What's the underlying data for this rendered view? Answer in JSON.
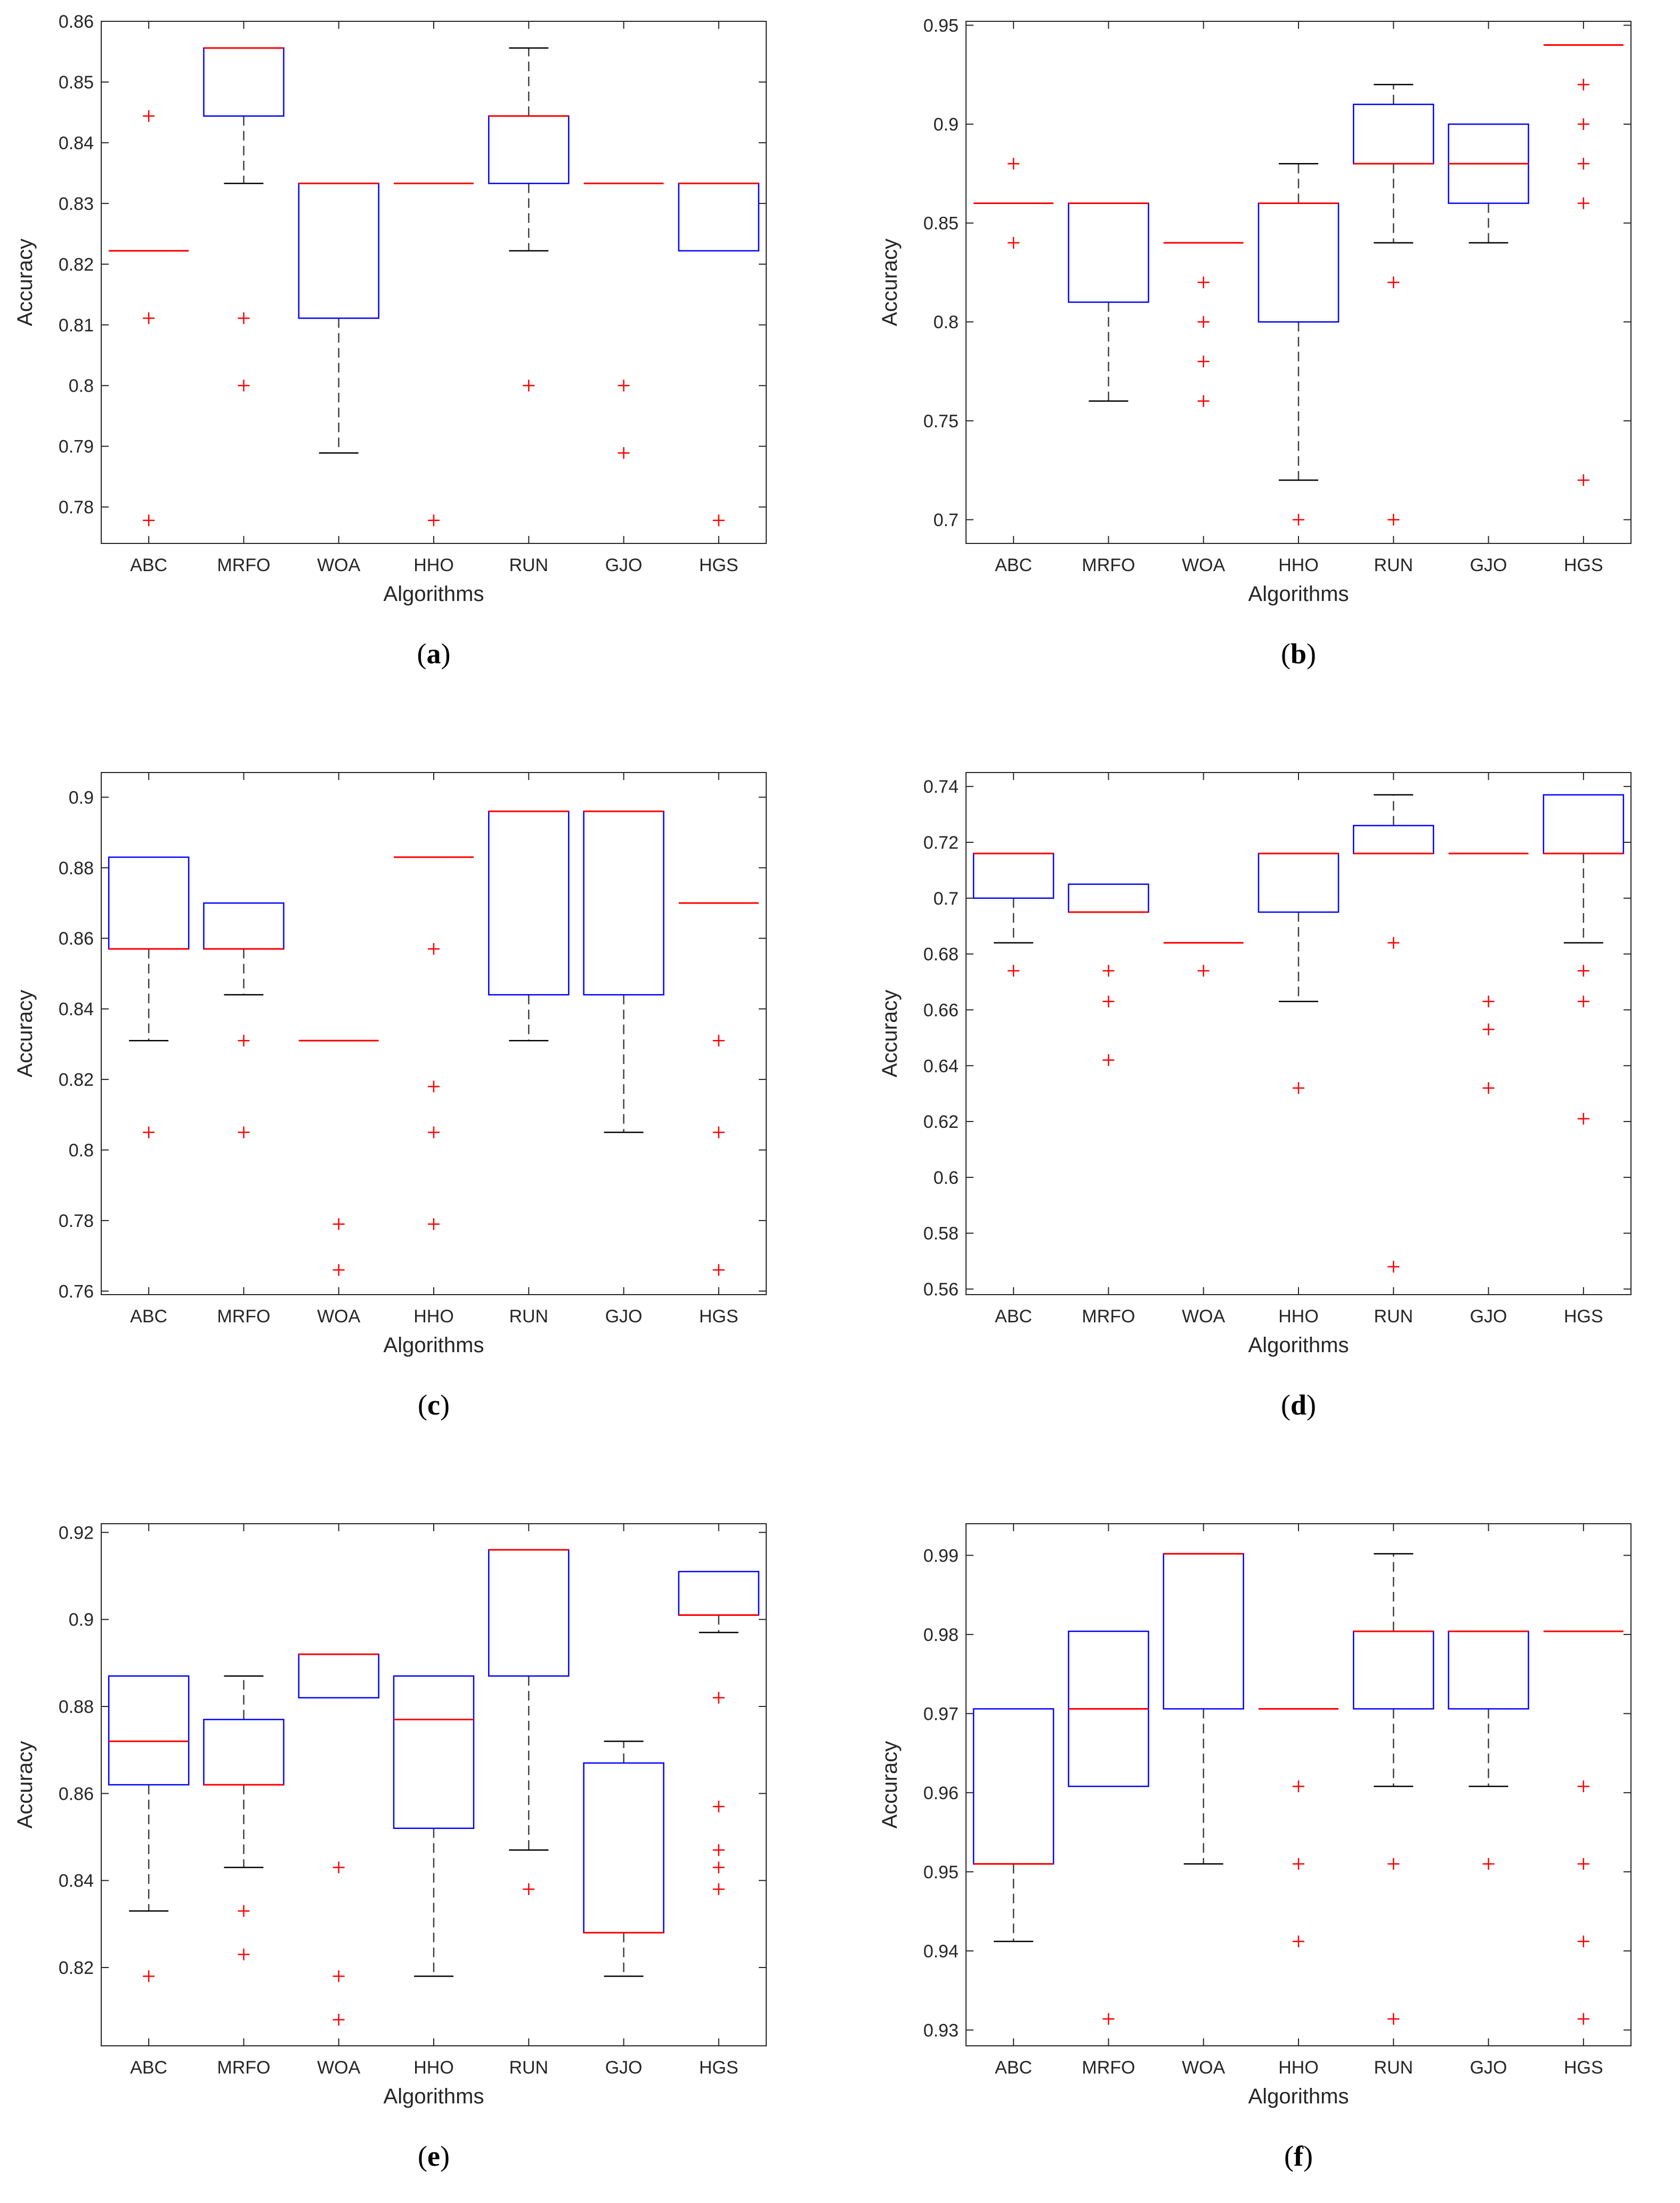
{
  "colors": {
    "box": "#0000ff",
    "median": "#ff0000",
    "outlier": "#ff0000",
    "whisker": "#000000",
    "axis": "#262626"
  },
  "chart_data": [
    {
      "type": "box",
      "label": "a",
      "categories": [
        "ABC",
        "MRFO",
        "WOA",
        "HHO",
        "RUN",
        "GJO",
        "HGS"
      ],
      "xlabel": "Algorithms",
      "ylabel": "Accuracy",
      "ylim": [
        0.774,
        0.86
      ],
      "yticks": [
        0.78,
        0.79,
        0.8,
        0.81,
        0.82,
        0.83,
        0.84,
        0.85,
        0.86
      ],
      "boxes": [
        {
          "median": 0.8222,
          "q1": 0.8222,
          "q3": 0.8222,
          "whislo": 0.8222,
          "whishi": 0.8222,
          "outliers": [
            0.8444,
            0.8111,
            0.7778
          ]
        },
        {
          "median": 0.8556,
          "q1": 0.8444,
          "q3": 0.8556,
          "whislo": 0.8333,
          "whishi": 0.8556,
          "outliers": [
            0.8111,
            0.8
          ]
        },
        {
          "median": 0.8333,
          "q1": 0.8111,
          "q3": 0.8333,
          "whislo": 0.7889,
          "whishi": 0.8333,
          "outliers": []
        },
        {
          "median": 0.8333,
          "q1": 0.8333,
          "q3": 0.8333,
          "whislo": 0.8333,
          "whishi": 0.8333,
          "outliers": [
            0.7778
          ]
        },
        {
          "median": 0.8444,
          "q1": 0.8333,
          "q3": 0.8444,
          "whislo": 0.8222,
          "whishi": 0.8556,
          "outliers": [
            0.8
          ]
        },
        {
          "median": 0.8333,
          "q1": 0.8333,
          "q3": 0.8333,
          "whislo": 0.8333,
          "whishi": 0.8333,
          "outliers": [
            0.8,
            0.7889
          ]
        },
        {
          "median": 0.8333,
          "q1": 0.8222,
          "q3": 0.8333,
          "whislo": 0.8222,
          "whishi": 0.8333,
          "outliers": [
            0.7778
          ]
        }
      ]
    },
    {
      "type": "box",
      "label": "b",
      "categories": [
        "ABC",
        "MRFO",
        "WOA",
        "HHO",
        "RUN",
        "GJO",
        "HGS"
      ],
      "xlabel": "Algorithms",
      "ylabel": "Accuracy",
      "ylim": [
        0.688,
        0.952
      ],
      "yticks": [
        0.7,
        0.75,
        0.8,
        0.85,
        0.9,
        0.95
      ],
      "boxes": [
        {
          "median": 0.86,
          "q1": 0.86,
          "q3": 0.86,
          "whislo": 0.86,
          "whishi": 0.86,
          "outliers": [
            0.88,
            0.84
          ]
        },
        {
          "median": 0.86,
          "q1": 0.81,
          "q3": 0.86,
          "whislo": 0.76,
          "whishi": 0.86,
          "outliers": []
        },
        {
          "median": 0.84,
          "q1": 0.84,
          "q3": 0.84,
          "whislo": 0.84,
          "whishi": 0.84,
          "outliers": [
            0.82,
            0.8,
            0.78,
            0.76
          ]
        },
        {
          "median": 0.86,
          "q1": 0.8,
          "q3": 0.86,
          "whislo": 0.72,
          "whishi": 0.88,
          "outliers": [
            0.7
          ]
        },
        {
          "median": 0.88,
          "q1": 0.88,
          "q3": 0.91,
          "whislo": 0.84,
          "whishi": 0.92,
          "outliers": [
            0.82,
            0.7
          ]
        },
        {
          "median": 0.88,
          "q1": 0.86,
          "q3": 0.9,
          "whislo": 0.84,
          "whishi": 0.9,
          "outliers": []
        },
        {
          "median": 0.94,
          "q1": 0.94,
          "q3": 0.94,
          "whislo": 0.94,
          "whishi": 0.94,
          "outliers": [
            0.92,
            0.9,
            0.88,
            0.86,
            0.72
          ]
        }
      ]
    },
    {
      "type": "box",
      "label": "c",
      "categories": [
        "ABC",
        "MRFO",
        "WOA",
        "HHO",
        "RUN",
        "GJO",
        "HGS"
      ],
      "xlabel": "Algorithms",
      "ylabel": "Accuracy",
      "ylim": [
        0.759,
        0.907
      ],
      "yticks": [
        0.76,
        0.78,
        0.8,
        0.82,
        0.84,
        0.86,
        0.88,
        0.9
      ],
      "boxes": [
        {
          "median": 0.857,
          "q1": 0.857,
          "q3": 0.883,
          "whislo": 0.831,
          "whishi": 0.883,
          "outliers": [
            0.805
          ]
        },
        {
          "median": 0.857,
          "q1": 0.857,
          "q3": 0.87,
          "whislo": 0.844,
          "whishi": 0.87,
          "outliers": [
            0.831,
            0.805
          ]
        },
        {
          "median": 0.831,
          "q1": 0.831,
          "q3": 0.831,
          "whislo": 0.831,
          "whishi": 0.831,
          "outliers": [
            0.779,
            0.766
          ]
        },
        {
          "median": 0.883,
          "q1": 0.883,
          "q3": 0.883,
          "whislo": 0.883,
          "whishi": 0.883,
          "outliers": [
            0.857,
            0.818,
            0.805,
            0.779
          ]
        },
        {
          "median": 0.896,
          "q1": 0.844,
          "q3": 0.896,
          "whislo": 0.831,
          "whishi": 0.896,
          "outliers": []
        },
        {
          "median": 0.896,
          "q1": 0.844,
          "q3": 0.896,
          "whislo": 0.805,
          "whishi": 0.896,
          "outliers": []
        },
        {
          "median": 0.87,
          "q1": 0.87,
          "q3": 0.87,
          "whislo": 0.87,
          "whishi": 0.87,
          "outliers": [
            0.831,
            0.805,
            0.766
          ]
        }
      ]
    },
    {
      "type": "box",
      "label": "d",
      "categories": [
        "ABC",
        "MRFO",
        "WOA",
        "HHO",
        "RUN",
        "GJO",
        "HGS"
      ],
      "xlabel": "Algorithms",
      "ylabel": "Accuracy",
      "ylim": [
        0.558,
        0.745
      ],
      "yticks": [
        0.56,
        0.58,
        0.6,
        0.62,
        0.64,
        0.66,
        0.68,
        0.7,
        0.72,
        0.74
      ],
      "boxes": [
        {
          "median": 0.716,
          "q1": 0.7,
          "q3": 0.716,
          "whislo": 0.684,
          "whishi": 0.716,
          "outliers": [
            0.674
          ]
        },
        {
          "median": 0.695,
          "q1": 0.695,
          "q3": 0.705,
          "whislo": 0.695,
          "whishi": 0.705,
          "outliers": [
            0.674,
            0.663,
            0.642
          ]
        },
        {
          "median": 0.684,
          "q1": 0.684,
          "q3": 0.684,
          "whislo": 0.684,
          "whishi": 0.684,
          "outliers": [
            0.674
          ]
        },
        {
          "median": 0.716,
          "q1": 0.695,
          "q3": 0.716,
          "whislo": 0.663,
          "whishi": 0.716,
          "outliers": [
            0.632
          ]
        },
        {
          "median": 0.716,
          "q1": 0.716,
          "q3": 0.726,
          "whislo": 0.716,
          "whishi": 0.737,
          "outliers": [
            0.684,
            0.568
          ]
        },
        {
          "median": 0.716,
          "q1": 0.716,
          "q3": 0.716,
          "whislo": 0.716,
          "whishi": 0.716,
          "outliers": [
            0.663,
            0.653,
            0.632
          ]
        },
        {
          "median": 0.716,
          "q1": 0.716,
          "q3": 0.737,
          "whislo": 0.684,
          "whishi": 0.737,
          "outliers": [
            0.674,
            0.663,
            0.621
          ]
        }
      ]
    },
    {
      "type": "box",
      "label": "e",
      "categories": [
        "ABC",
        "MRFO",
        "WOA",
        "HHO",
        "RUN",
        "GJO",
        "HGS"
      ],
      "xlabel": "Algorithms",
      "ylabel": "Accuracy",
      "ylim": [
        0.802,
        0.922
      ],
      "yticks": [
        0.82,
        0.84,
        0.86,
        0.88,
        0.9,
        0.92
      ],
      "boxes": [
        {
          "median": 0.872,
          "q1": 0.862,
          "q3": 0.887,
          "whislo": 0.833,
          "whishi": 0.887,
          "outliers": [
            0.818
          ]
        },
        {
          "median": 0.862,
          "q1": 0.862,
          "q3": 0.877,
          "whislo": 0.843,
          "whishi": 0.887,
          "outliers": [
            0.833,
            0.823
          ]
        },
        {
          "median": 0.892,
          "q1": 0.882,
          "q3": 0.892,
          "whislo": 0.882,
          "whishi": 0.892,
          "outliers": [
            0.843,
            0.818,
            0.808
          ]
        },
        {
          "median": 0.877,
          "q1": 0.852,
          "q3": 0.887,
          "whislo": 0.818,
          "whishi": 0.887,
          "outliers": []
        },
        {
          "median": 0.916,
          "q1": 0.887,
          "q3": 0.916,
          "whislo": 0.847,
          "whishi": 0.916,
          "outliers": [
            0.838
          ]
        },
        {
          "median": 0.828,
          "q1": 0.828,
          "q3": 0.867,
          "whislo": 0.818,
          "whishi": 0.872,
          "outliers": []
        },
        {
          "median": 0.901,
          "q1": 0.901,
          "q3": 0.911,
          "whislo": 0.897,
          "whishi": 0.911,
          "outliers": [
            0.882,
            0.857,
            0.847,
            0.843,
            0.838
          ]
        }
      ]
    },
    {
      "type": "box",
      "label": "f",
      "categories": [
        "ABC",
        "MRFO",
        "WOA",
        "HHO",
        "RUN",
        "GJO",
        "HGS"
      ],
      "xlabel": "Algorithms",
      "ylabel": "Accuracy",
      "ylim": [
        0.928,
        0.994
      ],
      "yticks": [
        0.93,
        0.94,
        0.95,
        0.96,
        0.97,
        0.98,
        0.99
      ],
      "boxes": [
        {
          "median": 0.951,
          "q1": 0.951,
          "q3": 0.9706,
          "whislo": 0.9412,
          "whishi": 0.9706,
          "outliers": []
        },
        {
          "median": 0.9706,
          "q1": 0.9608,
          "q3": 0.9804,
          "whislo": 0.9608,
          "whishi": 0.9804,
          "outliers": [
            0.9314
          ]
        },
        {
          "median": 0.9902,
          "q1": 0.9706,
          "q3": 0.9902,
          "whislo": 0.951,
          "whishi": 0.9902,
          "outliers": []
        },
        {
          "median": 0.9706,
          "q1": 0.9706,
          "q3": 0.9706,
          "whislo": 0.9706,
          "whishi": 0.9706,
          "outliers": [
            0.9608,
            0.951,
            0.9412
          ]
        },
        {
          "median": 0.9804,
          "q1": 0.9706,
          "q3": 0.9804,
          "whislo": 0.9608,
          "whishi": 0.9902,
          "outliers": [
            0.951,
            0.9314
          ]
        },
        {
          "median": 0.9804,
          "q1": 0.9706,
          "q3": 0.9804,
          "whislo": 0.9608,
          "whishi": 0.9804,
          "outliers": [
            0.951
          ]
        },
        {
          "median": 0.9804,
          "q1": 0.9804,
          "q3": 0.9804,
          "whislo": 0.9804,
          "whishi": 0.9804,
          "outliers": [
            0.9608,
            0.951,
            0.9412,
            0.9314
          ]
        }
      ]
    }
  ]
}
